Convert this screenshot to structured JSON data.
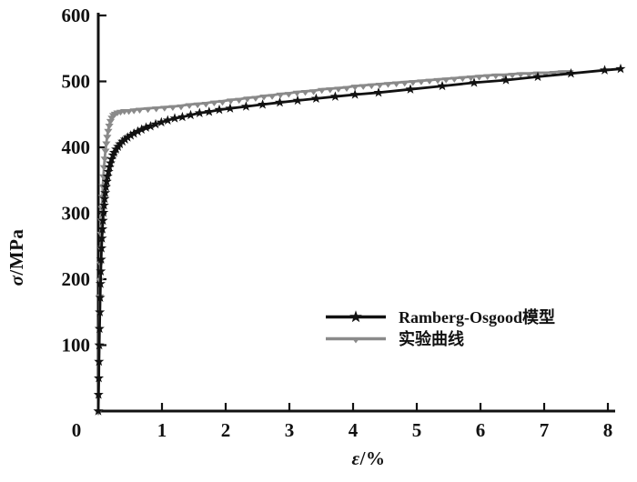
{
  "figure": {
    "background": "#ffffff"
  },
  "axis": {
    "ylabel_symbol": "σ",
    "ylabel_unit": "/MPa",
    "xlabel_symbol": "ε",
    "xlabel_unit": "/%",
    "origin_label": "0",
    "color": "#111111"
  },
  "chart_data": {
    "type": "line",
    "title": "",
    "xlabel": "ε/%",
    "ylabel": "σ/MPa",
    "xlim": [
      0,
      8.2
    ],
    "ylim": [
      0,
      600
    ],
    "xticks": [
      1,
      2,
      3,
      4,
      5,
      6,
      7,
      8
    ],
    "yticks": [
      100,
      200,
      300,
      400,
      500,
      600
    ],
    "grid": false,
    "legend_position": "inside-lower-right",
    "series": [
      {
        "name": "Ramberg-Osgood模型",
        "color": "#111111",
        "marker": "star",
        "points": [
          [
            0,
            0
          ],
          [
            0.004,
            25
          ],
          [
            0.008,
            50
          ],
          [
            0.012,
            75
          ],
          [
            0.016,
            100
          ],
          [
            0.02,
            125
          ],
          [
            0.025,
            150
          ],
          [
            0.03,
            172
          ],
          [
            0.035,
            193
          ],
          [
            0.04,
            212
          ],
          [
            0.046,
            230
          ],
          [
            0.052,
            247
          ],
          [
            0.059,
            262
          ],
          [
            0.066,
            276
          ],
          [
            0.074,
            289
          ],
          [
            0.082,
            301
          ],
          [
            0.091,
            312
          ],
          [
            0.1,
            322
          ],
          [
            0.11,
            331
          ],
          [
            0.121,
            340
          ],
          [
            0.133,
            348
          ],
          [
            0.146,
            356
          ],
          [
            0.16,
            363
          ],
          [
            0.175,
            370
          ],
          [
            0.191,
            376
          ],
          [
            0.208,
            382
          ],
          [
            0.23,
            388
          ],
          [
            0.25,
            392
          ],
          [
            0.28,
            397
          ],
          [
            0.31,
            401
          ],
          [
            0.34,
            405
          ],
          [
            0.38,
            409
          ],
          [
            0.42,
            412
          ],
          [
            0.46,
            415
          ],
          [
            0.51,
            418
          ],
          [
            0.56,
            421
          ],
          [
            0.62,
            424
          ],
          [
            0.68,
            427
          ],
          [
            0.75,
            430
          ],
          [
            0.82,
            432
          ],
          [
            0.9,
            435
          ],
          [
            0.99,
            438
          ],
          [
            1.09,
            441
          ],
          [
            1.2,
            444
          ],
          [
            1.32,
            446
          ],
          [
            1.45,
            449
          ],
          [
            1.59,
            452
          ],
          [
            1.74,
            454
          ],
          [
            1.9,
            457
          ],
          [
            2.07,
            459
          ],
          [
            2.32,
            462
          ],
          [
            2.58,
            465
          ],
          [
            2.85,
            468
          ],
          [
            3.13,
            471
          ],
          [
            3.42,
            474
          ],
          [
            3.72,
            477
          ],
          [
            4.03,
            480
          ],
          [
            4.4,
            483
          ],
          [
            4.9,
            488
          ],
          [
            5.4,
            493
          ],
          [
            5.9,
            498
          ],
          [
            6.4,
            502
          ],
          [
            6.9,
            507
          ],
          [
            7.42,
            512
          ],
          [
            7.95,
            517
          ],
          [
            8.2,
            519
          ]
        ]
      },
      {
        "name": "实验曲线",
        "color": "#8a8a8a",
        "marker": "triangle-down",
        "points": [
          [
            0,
            0
          ],
          [
            0.003,
            25
          ],
          [
            0.006,
            50
          ],
          [
            0.009,
            75
          ],
          [
            0.012,
            100
          ],
          [
            0.016,
            125
          ],
          [
            0.02,
            150
          ],
          [
            0.024,
            175
          ],
          [
            0.028,
            200
          ],
          [
            0.033,
            225
          ],
          [
            0.038,
            248
          ],
          [
            0.044,
            270
          ],
          [
            0.05,
            290
          ],
          [
            0.057,
            309
          ],
          [
            0.064,
            326
          ],
          [
            0.072,
            342
          ],
          [
            0.081,
            357
          ],
          [
            0.091,
            371
          ],
          [
            0.102,
            384
          ],
          [
            0.114,
            396
          ],
          [
            0.127,
            407
          ],
          [
            0.141,
            417
          ],
          [
            0.156,
            426
          ],
          [
            0.173,
            434
          ],
          [
            0.192,
            441
          ],
          [
            0.213,
            446
          ],
          [
            0.236,
            450
          ],
          [
            0.262,
            452
          ],
          [
            0.3,
            454
          ],
          [
            0.35,
            455
          ],
          [
            0.41,
            456
          ],
          [
            0.48,
            456
          ],
          [
            0.56,
            457
          ],
          [
            0.65,
            458
          ],
          [
            0.78,
            459
          ],
          [
            0.91,
            460
          ],
          [
            1.04,
            461
          ],
          [
            1.17,
            462
          ],
          [
            1.3,
            463
          ],
          [
            1.43,
            465
          ],
          [
            1.56,
            466
          ],
          [
            1.69,
            467
          ],
          [
            1.82,
            469
          ],
          [
            1.95,
            470
          ],
          [
            2.08,
            472
          ],
          [
            2.21,
            473
          ],
          [
            2.34,
            475
          ],
          [
            2.47,
            476
          ],
          [
            2.6,
            478
          ],
          [
            2.73,
            479
          ],
          [
            2.86,
            481
          ],
          [
            2.99,
            482
          ],
          [
            3.12,
            484
          ],
          [
            3.25,
            485
          ],
          [
            3.38,
            486
          ],
          [
            3.51,
            488
          ],
          [
            3.64,
            489
          ],
          [
            3.77,
            490
          ],
          [
            3.9,
            491
          ],
          [
            4.03,
            493
          ],
          [
            4.16,
            494
          ],
          [
            4.29,
            495
          ],
          [
            4.42,
            496
          ],
          [
            4.55,
            497
          ],
          [
            4.68,
            498
          ],
          [
            4.81,
            499
          ],
          [
            4.94,
            500
          ],
          [
            5.07,
            501
          ],
          [
            5.2,
            502
          ],
          [
            5.33,
            503
          ],
          [
            5.46,
            504
          ],
          [
            5.59,
            505
          ],
          [
            5.72,
            506
          ],
          [
            5.85,
            507
          ],
          [
            5.98,
            508
          ],
          [
            6.11,
            509
          ],
          [
            6.24,
            510
          ],
          [
            6.37,
            510
          ],
          [
            6.5,
            511
          ],
          [
            6.63,
            512
          ],
          [
            6.76,
            512
          ],
          [
            6.89,
            513
          ],
          [
            7.02,
            513
          ],
          [
            7.15,
            514
          ],
          [
            7.28,
            515
          ],
          [
            7.4,
            515
          ]
        ]
      }
    ]
  }
}
